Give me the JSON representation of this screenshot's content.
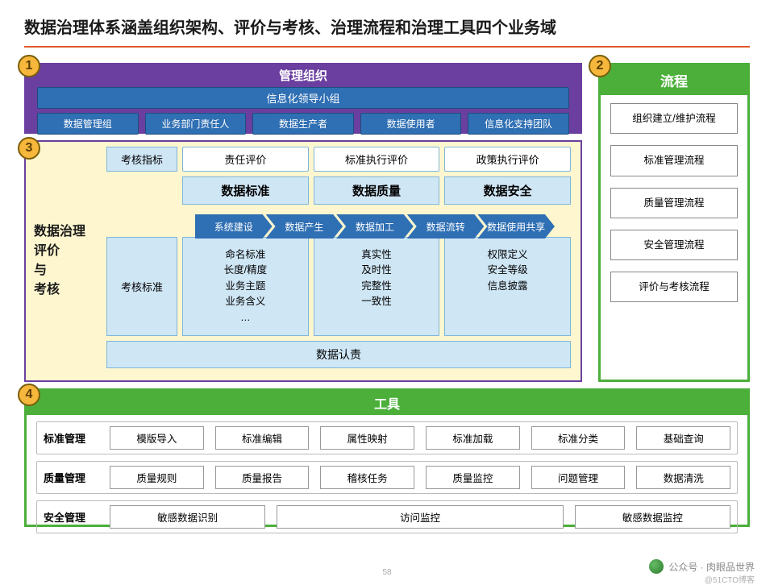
{
  "page": {
    "title": "数据治理体系涵盖组织架构、评价与考核、治理流程和治理工具四个业务域",
    "number": "58",
    "underline_color": "#e05a2b",
    "watermark_main": "公众号 · 肉眼品世界",
    "watermark_sub": "@51CTO博客"
  },
  "badges": {
    "b1": "1",
    "b2": "2",
    "b3": "3",
    "b4": "4",
    "style": {
      "bg": "#f6b73c",
      "border": "#7a5f0a",
      "size": 28
    }
  },
  "mgmt": {
    "title": "管理组织",
    "wide": "信息化领导小组",
    "cells": [
      "数据管理组",
      "业务部门责任人",
      "数据生产者",
      "数据使用者",
      "信息化支持团队"
    ],
    "colors": {
      "frame": "#6b3fa0",
      "cell_bg": "#2f6fb3",
      "cell_border": "#1d4d7c",
      "text": "#ffffff"
    }
  },
  "flow": {
    "title": "流程",
    "items": [
      "组织建立/维护流程",
      "标准管理流程",
      "质量管理流程",
      "安全管理流程",
      "评价与考核流程"
    ],
    "colors": {
      "frame": "#4caf3a",
      "title_bg": "#4caf3a",
      "item_border": "#888888"
    }
  },
  "eval": {
    "side_label": "数据治理\n评价\n与\n考核",
    "row_indicator": {
      "label": "考核指标",
      "cells": [
        "责任评价",
        "标准执行评价",
        "政策执行评价"
      ]
    },
    "pillars": [
      {
        "h": "数据标准",
        "items": [
          "命名标准",
          "长度/精度",
          "业务主题",
          "业务含义",
          "…"
        ]
      },
      {
        "h": "数据质量",
        "items": [
          "真实性",
          "及时性",
          "完整性",
          "一致性"
        ]
      },
      {
        "h": "数据安全",
        "items": [
          "权限定义",
          "安全等级",
          "信息披露"
        ]
      }
    ],
    "row_standard_label": "考核标准",
    "chain": [
      "系统建设",
      "数据产生",
      "数据加工",
      "数据流转",
      "数据使用共享"
    ],
    "renze": "数据认责",
    "colors": {
      "bg": "#fdf6cf",
      "frame": "#6b3fa0",
      "box_bg": "#cfe6f5",
      "box_border": "#7fb6da",
      "chain_bg": "#2f6fb3",
      "chain_text": "#ffffff"
    }
  },
  "tools": {
    "title": "工具",
    "rows": [
      {
        "label": "标准管理",
        "cells": [
          "模版导入",
          "标准编辑",
          "属性映射",
          "标准加载",
          "标准分类",
          "基础查询"
        ],
        "flex": [
          1,
          1,
          1,
          1,
          1,
          1
        ]
      },
      {
        "label": "质量管理",
        "cells": [
          "质量规则",
          "质量报告",
          "稽核任务",
          "质量监控",
          "问题管理",
          "数据清洗"
        ],
        "flex": [
          1,
          1,
          1,
          1,
          1,
          1
        ]
      },
      {
        "label": "安全管理",
        "cells": [
          "敏感数据识别",
          "访问监控",
          "敏感数据监控"
        ],
        "flex": [
          1.3,
          2.4,
          1.3
        ]
      }
    ],
    "colors": {
      "frame": "#4caf3a",
      "title_bg": "#4caf3a",
      "cell_border": "#999999",
      "row_border": "#bbbbbb"
    }
  }
}
